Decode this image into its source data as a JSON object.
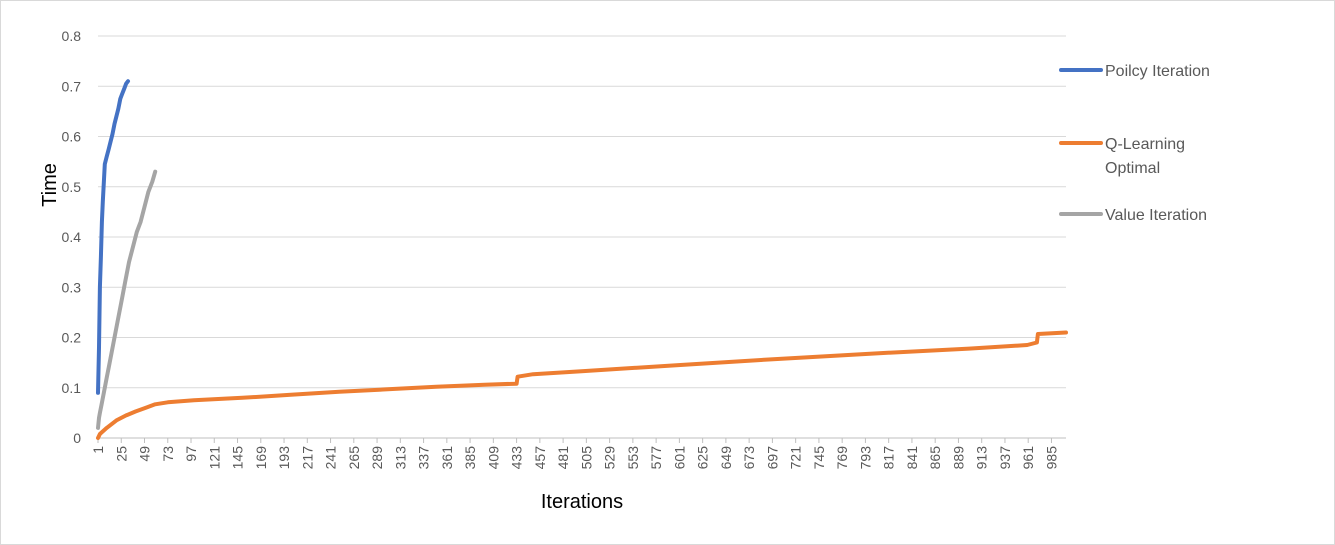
{
  "chart_data": {
    "type": "line",
    "title": "",
    "xlabel": "Iterations",
    "ylabel": "Time",
    "ylim": [
      0,
      0.8
    ],
    "y_ticks": [
      "0",
      "0.1",
      "0.2",
      "0.3",
      "0.4",
      "0.5",
      "0.6",
      "0.7",
      "0.8"
    ],
    "x_range": [
      1,
      1000
    ],
    "x_ticks": [
      "1",
      "25",
      "49",
      "73",
      "97",
      "121",
      "145",
      "169",
      "193",
      "217",
      "241",
      "265",
      "289",
      "313",
      "337",
      "361",
      "385",
      "409",
      "433",
      "457",
      "481",
      "505",
      "529",
      "553",
      "577",
      "601",
      "625",
      "649",
      "673",
      "697",
      "721",
      "745",
      "769",
      "793",
      "817",
      "841",
      "865",
      "889",
      "913",
      "937",
      "961",
      "985"
    ],
    "grid": "horizontal",
    "legend_position": "right",
    "series": [
      {
        "name": "Poilcy Iteration",
        "color": "#4472C4",
        "x": [
          1,
          2,
          3,
          4,
          5,
          6,
          8,
          10,
          12,
          14,
          16,
          18,
          20,
          22,
          24,
          26,
          28,
          30,
          32
        ],
        "y": [
          0.09,
          0.18,
          0.3,
          0.36,
          0.43,
          0.47,
          0.545,
          0.56,
          0.575,
          0.59,
          0.605,
          0.625,
          0.64,
          0.655,
          0.675,
          0.685,
          0.695,
          0.705,
          0.71
        ]
      },
      {
        "name": "Q-Learning Optimal",
        "color": "#ED7D31",
        "x": [
          1,
          3,
          10,
          20,
          30,
          40,
          50,
          60,
          73,
          100,
          150,
          200,
          250,
          300,
          350,
          400,
          433,
          434,
          450,
          500,
          600,
          700,
          800,
          900,
          960,
          970,
          971,
          1000
        ],
        "y": [
          0.0,
          0.008,
          0.02,
          0.035,
          0.045,
          0.053,
          0.06,
          0.067,
          0.071,
          0.075,
          0.08,
          0.086,
          0.092,
          0.097,
          0.102,
          0.106,
          0.108,
          0.122,
          0.127,
          0.133,
          0.145,
          0.157,
          0.168,
          0.178,
          0.185,
          0.19,
          0.207,
          0.21
        ]
      },
      {
        "name": "Value Iteration",
        "color": "#A5A5A5",
        "x": [
          1,
          2,
          3,
          5,
          8,
          10,
          12,
          15,
          18,
          21,
          25,
          29,
          33,
          37,
          41,
          45,
          49,
          53,
          57,
          60
        ],
        "y": [
          0.02,
          0.04,
          0.05,
          0.07,
          0.1,
          0.12,
          0.14,
          0.17,
          0.2,
          0.23,
          0.27,
          0.31,
          0.35,
          0.38,
          0.41,
          0.43,
          0.46,
          0.49,
          0.51,
          0.53
        ]
      }
    ]
  }
}
